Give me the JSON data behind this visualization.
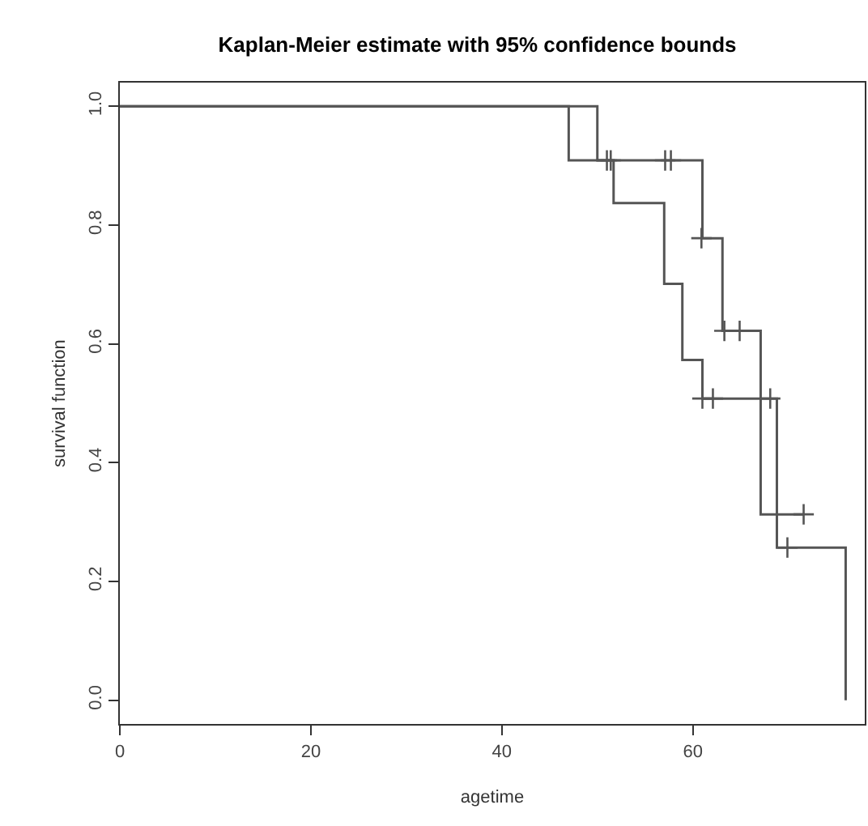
{
  "chart_data": {
    "type": "step",
    "title": "Kaplan-Meier estimate with 95% confidence bounds",
    "xlabel": "agetime",
    "ylabel": "survival function",
    "series": [
      {
        "color": "#555555",
        "x": [
          0,
          47,
          51.7,
          57,
          58.9,
          61,
          68.8,
          76
        ],
        "values": [
          1,
          0.909,
          0.837,
          0.701,
          0.573,
          0.508,
          0.257,
          0
        ]
      },
      {
        "color": "#555555",
        "x": [
          0,
          50,
          61,
          63.1,
          67.1,
          71.6
        ],
        "values": [
          1,
          0.909,
          0.778,
          0.622,
          0.313,
          0.313
        ]
      },
      {
        "type": "scatter",
        "marker": "cross",
        "color": "#555555",
        "x": [
          61,
          62.1,
          68.1,
          69.9
        ],
        "values": [
          0.508,
          0.508,
          0.508,
          0.257
        ]
      },
      {
        "type": "scatter",
        "marker": "cross",
        "color": "#555555",
        "x": [
          51,
          51.4,
          57.1,
          57.7,
          60.9,
          63.3,
          64.9,
          71.6
        ],
        "values": [
          0.909,
          0.909,
          0.909,
          0.909,
          0.778,
          0.622,
          0.622,
          0.313
        ]
      }
    ],
    "xlim": [
      0,
      78
    ],
    "xticks": [
      0,
      20,
      40,
      60
    ],
    "ylim": [
      -0.04,
      1.04
    ],
    "yticks": [
      {
        "value": 0,
        "label": "0.0"
      },
      0.2,
      0.4,
      0.6,
      0.8,
      {
        "value": 1,
        "label": "1.0"
      }
    ],
    "grid": false,
    "line_style": "solid"
  }
}
